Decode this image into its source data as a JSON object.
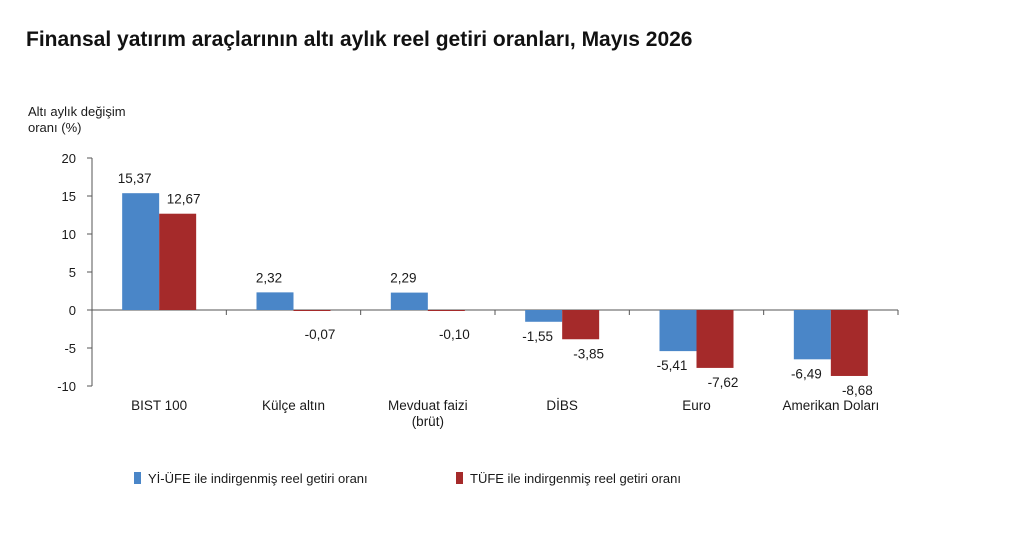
{
  "title": "Finansal yatırım araçlarının altı aylık reel getiri oranları, Mayıs 2026",
  "chart_data": {
    "type": "bar",
    "title": "Finansal yatırım araçlarının altı aylık reel getiri oranları, Mayıs 2026",
    "ylabel_lines": [
      "Altı aylık değişim",
      "oranı (%)"
    ],
    "xlabel": "",
    "ylim": [
      -10,
      20
    ],
    "yticks": [
      20,
      15,
      10,
      5,
      0,
      -5,
      -10
    ],
    "grid": false,
    "legend_position": "bottom",
    "categories": [
      [
        "BIST 100"
      ],
      [
        "Külçe altın"
      ],
      [
        "Mevduat faizi",
        "(brüt)"
      ],
      [
        "DİBS"
      ],
      [
        "Euro"
      ],
      [
        "Amerikan Doları"
      ]
    ],
    "series": [
      {
        "name": "Yİ-ÜFE ile indirgenmiş reel getiri oranı",
        "color": "#4a86c8",
        "values": [
          15.37,
          2.32,
          2.29,
          -1.55,
          -5.41,
          -6.49
        ],
        "labels": [
          "15,37",
          "2,32",
          "2,29",
          "-1,55",
          "-5,41",
          "-6,49"
        ]
      },
      {
        "name": "TÜFE ile indirgenmiş reel getiri oranı",
        "color": "#a52a2a",
        "values": [
          12.67,
          -0.07,
          -0.1,
          -3.85,
          -7.62,
          -8.68
        ],
        "labels": [
          "12,67",
          "-0,07",
          "-0,10",
          "-3,85",
          "-7,62",
          "-8,68"
        ]
      }
    ]
  }
}
